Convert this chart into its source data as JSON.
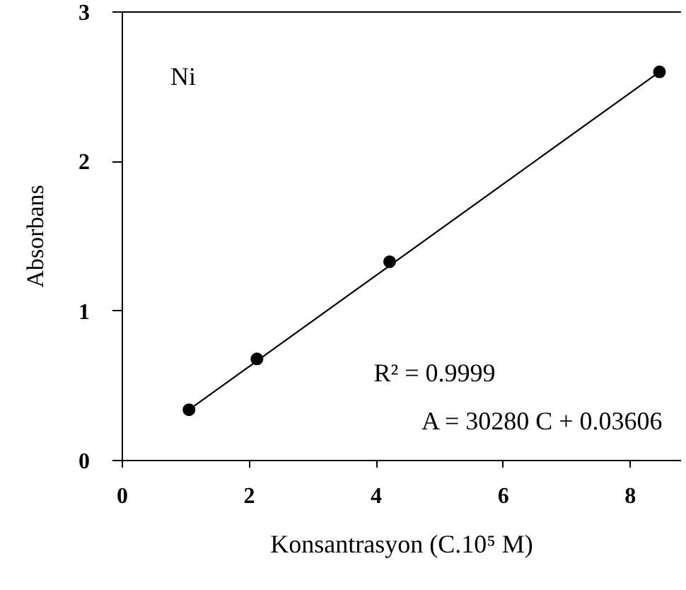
{
  "chart_data": {
    "type": "scatter",
    "xlabel": "Konsantrasyon (C.10⁵ M)",
    "ylabel": "Absorbans",
    "xlim": [
      0,
      8.8
    ],
    "ylim": [
      0,
      3
    ],
    "xticks": [
      0,
      2,
      4,
      6,
      8
    ],
    "yticks": [
      0,
      1,
      2,
      3
    ],
    "series": [
      {
        "type": "line",
        "x": [
          1.05,
          8.46
        ],
        "values": [
          0.34,
          2.6
        ],
        "color": "#000000"
      },
      {
        "x": [
          1.05,
          2.12,
          4.21,
          8.46
        ],
        "values": [
          0.34,
          0.68,
          1.33,
          2.6
        ],
        "color": "#000000",
        "marker": "circle"
      }
    ],
    "annotations": [
      "Ni",
      "R² = 0.9999",
      "A = 30280 C + 0.03606"
    ]
  }
}
